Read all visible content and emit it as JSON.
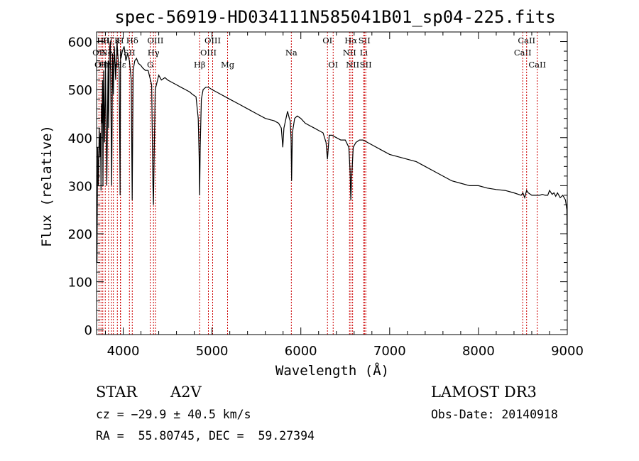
{
  "chart_data": {
    "type": "line",
    "title": "spec-56919-HD034111N585041B01_sp04-225.fits",
    "xlabel": "Wavelength (Å)",
    "ylabel": "Flux (relative)",
    "xlim": [
      3700,
      9000
    ],
    "ylim": [
      -10,
      620
    ],
    "xticks": [
      4000,
      5000,
      6000,
      7000,
      8000,
      9000
    ],
    "yticks": [
      0,
      100,
      200,
      300,
      400,
      500,
      600
    ],
    "line_color": "#000000",
    "marker_color": "#cc0000",
    "spectrum": {
      "x": [
        3700,
        3705,
        3712,
        3720,
        3730,
        3740,
        3745,
        3750,
        3755,
        3760,
        3768,
        3772,
        3780,
        3790,
        3797,
        3800,
        3815,
        3830,
        3835,
        3845,
        3855,
        3870,
        3880,
        3889,
        3900,
        3915,
        3930,
        3940,
        3955,
        3965,
        3970,
        3975,
        3990,
        4010,
        4030,
        4050,
        4070,
        4090,
        4101,
        4112,
        4130,
        4150,
        4170,
        4200,
        4220,
        4250,
        4280,
        4300,
        4320,
        4335,
        4340,
        4345,
        4360,
        4380,
        4400,
        4430,
        4470,
        4500,
        4550,
        4600,
        4650,
        4700,
        4750,
        4780,
        4820,
        4845,
        4855,
        4861,
        4867,
        4880,
        4900,
        4930,
        4960,
        5000,
        5050,
        5100,
        5150,
        5200,
        5300,
        5400,
        5500,
        5600,
        5700,
        5750,
        5780,
        5797,
        5810,
        5850,
        5870,
        5880,
        5890,
        5896,
        5905,
        5930,
        5960,
        6000,
        6050,
        6100,
        6150,
        6200,
        6250,
        6284,
        6300,
        6320,
        6350,
        6400,
        6450,
        6500,
        6540,
        6555,
        6563,
        6571,
        6590,
        6620,
        6660,
        6700,
        6800,
        6900,
        7000,
        7100,
        7200,
        7300,
        7400,
        7500,
        7600,
        7700,
        7800,
        7900,
        8000,
        8100,
        8200,
        8300,
        8400,
        8480,
        8500,
        8520,
        8542,
        8560,
        8600,
        8630,
        8662,
        8690,
        8720,
        8750,
        8780,
        8800,
        8830,
        8850,
        8870,
        8890,
        8920,
        8950,
        8980,
        8995,
        9000
      ],
      "y": [
        150,
        140,
        380,
        300,
        420,
        360,
        410,
        290,
        470,
        430,
        520,
        300,
        540,
        390,
        480,
        560,
        300,
        560,
        420,
        580,
        600,
        300,
        575,
        490,
        590,
        520,
        600,
        570,
        540,
        280,
        580,
        565,
        580,
        590,
        560,
        575,
        560,
        520,
        270,
        540,
        560,
        565,
        555,
        550,
        545,
        540,
        540,
        525,
        510,
        300,
        260,
        320,
        500,
        515,
        530,
        520,
        525,
        520,
        515,
        510,
        505,
        500,
        495,
        490,
        485,
        440,
        360,
        280,
        380,
        480,
        500,
        505,
        505,
        500,
        495,
        490,
        485,
        480,
        470,
        460,
        450,
        440,
        435,
        430,
        420,
        380,
        420,
        455,
        440,
        435,
        395,
        310,
        410,
        440,
        445,
        440,
        430,
        425,
        420,
        415,
        410,
        390,
        355,
        405,
        405,
        400,
        395,
        395,
        380,
        330,
        270,
        310,
        380,
        390,
        395,
        395,
        385,
        375,
        365,
        360,
        355,
        350,
        340,
        330,
        320,
        310,
        305,
        300,
        300,
        295,
        292,
        290,
        285,
        280,
        285,
        275,
        290,
        285,
        280,
        280,
        280,
        280,
        282,
        280,
        280,
        290,
        282,
        285,
        278,
        285,
        275,
        280,
        270,
        250,
        160
      ]
    },
    "line_markers": [
      {
        "wavelength": 3727,
        "label": "OII",
        "row": 2
      },
      {
        "wavelength": 3750,
        "label": "OII",
        "row": 3
      },
      {
        "wavelength": 3770,
        "label": "Hθ",
        "row": 1
      },
      {
        "wavelength": 3798,
        "label": "Hη",
        "row": 3
      },
      {
        "wavelength": 3835,
        "label": "Hζ",
        "row": 1
      },
      {
        "wavelength": 3869,
        "label": "NeIII",
        "row": 2
      },
      {
        "wavelength": 3889,
        "label": "He",
        "row": 3
      },
      {
        "wavelength": 3934,
        "label": "K",
        "row": 1
      },
      {
        "wavelength": 3968,
        "label": "H",
        "row": 1
      },
      {
        "wavelength": 3970,
        "label": "Hε",
        "row": 3
      },
      {
        "wavelength": 4102,
        "label": "Hδ",
        "row": 1
      },
      {
        "wavelength": 4070,
        "label": "SII",
        "row": 2
      },
      {
        "wavelength": 4304,
        "label": "G",
        "row": 3
      },
      {
        "wavelength": 4341,
        "label": "Hγ",
        "row": 2
      },
      {
        "wavelength": 4363,
        "label": "OIII",
        "row": 1
      },
      {
        "wavelength": 4861,
        "label": "Hβ",
        "row": 3
      },
      {
        "wavelength": 4959,
        "label": "OIII",
        "row": 2
      },
      {
        "wavelength": 5007,
        "label": "OIII",
        "row": 1
      },
      {
        "wavelength": 5175,
        "label": "Mg",
        "row": 3
      },
      {
        "wavelength": 5893,
        "label": "Na",
        "row": 2
      },
      {
        "wavelength": 6300,
        "label": "OI",
        "row": 1
      },
      {
        "wavelength": 6364,
        "label": "OI",
        "row": 3
      },
      {
        "wavelength": 6548,
        "label": "NII",
        "row": 2
      },
      {
        "wavelength": 6563,
        "label": "Hα",
        "row": 1
      },
      {
        "wavelength": 6583,
        "label": "NII",
        "row": 3
      },
      {
        "wavelength": 6708,
        "label": "Li",
        "row": 2
      },
      {
        "wavelength": 6716,
        "label": "SII",
        "row": 1
      },
      {
        "wavelength": 6731,
        "label": "SII",
        "row": 3
      },
      {
        "wavelength": 8498,
        "label": "CaII",
        "row": 2
      },
      {
        "wavelength": 8542,
        "label": "CaII",
        "row": 1
      },
      {
        "wavelength": 8662,
        "label": "CaII",
        "row": 3
      }
    ]
  },
  "info": {
    "object_type": "STAR",
    "spectral_class": "A2V",
    "survey": "LAMOST DR3",
    "redshift": "cz = −29.9 ± 40.5 km/s",
    "obs_date": "Obs-Date: 20140918",
    "coords": "RA =  55.80745, DEC =  59.27394"
  }
}
